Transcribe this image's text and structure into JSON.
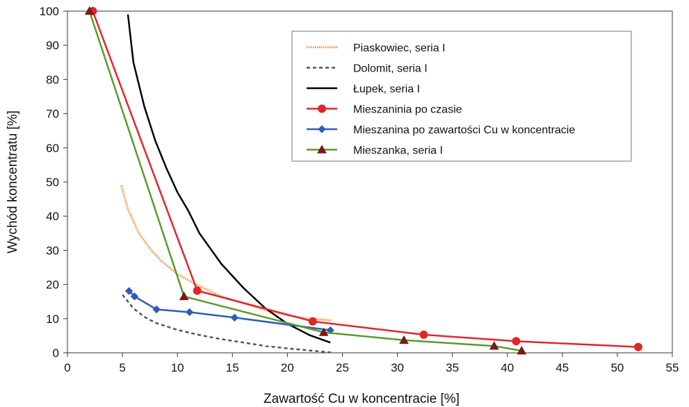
{
  "chart_data": {
    "type": "line",
    "title": "",
    "xlabel": "Zawartość Cu w koncentracie [%]",
    "ylabel": "Wychód koncentratu [%]",
    "xlim": [
      0,
      55
    ],
    "ylim": [
      0,
      100
    ],
    "xticks": [
      "0",
      "5",
      "10",
      "15",
      "20",
      "25",
      "30",
      "35",
      "40",
      "45",
      "50",
      "55"
    ],
    "yticks": [
      "0",
      "10",
      "20",
      "30",
      "40",
      "50",
      "60",
      "70",
      "80",
      "90",
      "100"
    ],
    "grid": false,
    "legend_position": "top-right",
    "series": [
      {
        "name": "Piaskowiec, seria I",
        "style": "dotted-band",
        "color": "#f08a3c",
        "marker": "none",
        "x": [
          4.9,
          5.5,
          6.5,
          7.5,
          8.5,
          10,
          12,
          14,
          16,
          18,
          20,
          22,
          24
        ],
        "y": [
          49,
          42,
          35,
          30.5,
          27,
          23,
          19.5,
          16.5,
          14.5,
          12.5,
          11,
          10,
          9.5
        ]
      },
      {
        "name": "Dolomit, seria I",
        "style": "dashed",
        "color": "#555555",
        "marker": "none",
        "x": [
          5,
          6,
          7,
          8,
          10,
          12,
          14,
          16,
          18,
          20,
          22,
          24
        ],
        "y": [
          17,
          13,
          10.5,
          8.8,
          6.7,
          5.2,
          4,
          3,
          2,
          1.3,
          0.7,
          0.1
        ]
      },
      {
        "name": "Łupek, seria I",
        "style": "solid",
        "color": "#000000",
        "marker": "none",
        "x": [
          5.5,
          6,
          7,
          8,
          9,
          10,
          11,
          12,
          14,
          16,
          18,
          20,
          22,
          23.9
        ],
        "y": [
          99,
          85,
          72,
          62,
          54,
          47,
          41.5,
          35,
          26,
          19,
          13,
          8.5,
          5.2,
          3
        ]
      },
      {
        "name": "Mieszaninia po czasie",
        "style": "solid",
        "color": "#e0262c",
        "marker": "circle",
        "x": [
          2.3,
          11.8,
          22.3,
          32.4,
          40.8,
          51.9
        ],
        "y": [
          100,
          18.2,
          9.2,
          5.3,
          3.4,
          1.7
        ]
      },
      {
        "name": "Mieszanina po zawartości Cu w koncentracie",
        "style": "solid",
        "color": "#2e5cb8",
        "marker": "diamond",
        "x": [
          5.6,
          6.1,
          8.1,
          11.1,
          15.2,
          23.9
        ],
        "y": [
          18.1,
          16.5,
          12.7,
          11.9,
          10.3,
          6.6
        ]
      },
      {
        "name": "Mieszanka, seria I",
        "style": "solid",
        "color": "#5a9a2e",
        "marker": "triangle",
        "marker_color": "#7a1a14",
        "x": [
          2.0,
          10.6,
          23.3,
          30.6,
          38.8,
          41.3
        ],
        "y": [
          100,
          16.5,
          6.0,
          3.7,
          2.0,
          0.6
        ]
      }
    ]
  }
}
